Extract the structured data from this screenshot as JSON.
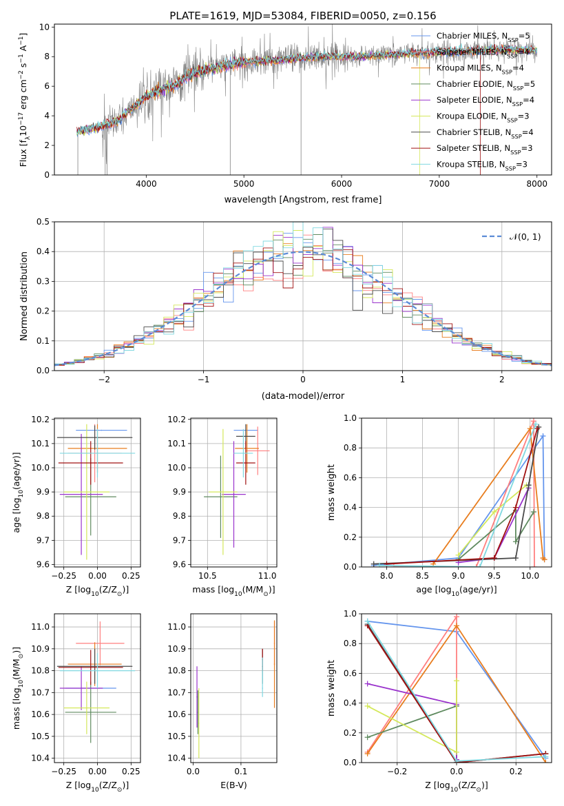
{
  "figure": {
    "title": "PLATE=1619, MJD=53084, FIBERID=0050, z=0.156"
  },
  "colors": {
    "Chabrier MILES": "#6495ed",
    "Salpeter MILES": "#ff7f7f",
    "Kroupa MILES": "#e87d1e",
    "Chabrier ELODIE": "#5f8a5f",
    "Salpeter ELODIE": "#9932cc",
    "Kroupa ELODIE": "#d4e85a",
    "Chabrier STELIB": "#4a4a4a",
    "Salpeter STELIB": "#a01010",
    "Kroupa STELIB": "#7fd8e0",
    "data": "#808080",
    "normal": "#5b8bd6"
  },
  "chart_data": [
    {
      "type": "line",
      "panel": "spectrum",
      "xlabel": "wavelength [Angstrom, rest frame]",
      "ylabel_main": "Flux [f",
      "ylabel_sub": "λ",
      "ylabel_rest": "10",
      "ylabel_sup1": "−17",
      "ylabel_mid": " erg cm",
      "ylabel_sup2": "−2",
      "ylabel_mid2": " s",
      "ylabel_sup3": "−1",
      "ylabel_mid3": " A",
      "ylabel_sup4": "−1",
      "ylabel_end": "]",
      "xlim": [
        3060,
        8150
      ],
      "ylim": [
        0,
        10.2
      ],
      "xticks": [
        "4000",
        "5000",
        "6000",
        "7000",
        "8000"
      ],
      "yticks": [
        "0",
        "2",
        "4",
        "6",
        "8",
        "10"
      ],
      "continuum_x": [
        3290,
        3400,
        3500,
        3600,
        3700,
        3800,
        3900,
        4000,
        4100,
        4200,
        4300,
        4400,
        4500,
        4600,
        4800,
        5000,
        5200,
        5400,
        5600,
        5800,
        6000,
        6200,
        6400,
        6600,
        6800,
        7000,
        7200,
        7400,
        7600,
        7800,
        8000
      ],
      "continuum_y": [
        2.9,
        3.1,
        3.2,
        3.4,
        3.6,
        4.2,
        4.7,
        5.3,
        5.6,
        5.9,
        6.1,
        6.6,
        6.9,
        7.1,
        7.4,
        7.6,
        7.7,
        7.8,
        7.9,
        8.0,
        8.0,
        8.0,
        8.1,
        8.15,
        8.25,
        8.3,
        8.35,
        8.4,
        8.45,
        8.45,
        8.4
      ],
      "legend": [
        {
          "main": "Chabrier MILES, N",
          "sub": "SSP",
          "rest": "=5"
        },
        {
          "main": "Salpeter MILES, N",
          "sub": "SSP",
          "rest": "=4"
        },
        {
          "main": "Kroupa MILES, N",
          "sub": "SSP",
          "rest": "=4"
        },
        {
          "main": "Chabrier ELODIE, N",
          "sub": "SSP",
          "rest": "=5"
        },
        {
          "main": "Salpeter ELODIE, N",
          "sub": "SSP",
          "rest": "=4"
        },
        {
          "main": "Kroupa ELODIE, N",
          "sub": "SSP",
          "rest": "=3"
        },
        {
          "main": "Chabrier STELIB, N",
          "sub": "SSP",
          "rest": "=4"
        },
        {
          "main": "Salpeter STELIB, N",
          "sub": "SSP",
          "rest": "=3"
        },
        {
          "main": "Kroupa STELIB, N",
          "sub": "SSP",
          "rest": "=3"
        }
      ]
    },
    {
      "type": "bar",
      "panel": "residuals",
      "xlabel": "(data-model)/error",
      "ylabel": "Normed distribution",
      "xlim": [
        -2.5,
        2.5
      ],
      "ylim": [
        0,
        0.5
      ],
      "xticks": [
        "−2",
        "−1",
        "0",
        "1",
        "2"
      ],
      "yticks": [
        "0.0",
        "0.1",
        "0.2",
        "0.3",
        "0.4",
        "0.5"
      ],
      "legend": "𝒩(0, 1)",
      "bin_width": 0.1,
      "bin_start": -2.5
    },
    {
      "type": "scatter",
      "panel": "age-vs-Z",
      "xlabel": "Z [log",
      "xlabel_sub": "10",
      "xlabel_rest": "(Z/Z",
      "xlabel_sun": "⊙",
      "xlabel_end": ")]",
      "ylabel": "age  [log",
      "ylabel_sub": "10",
      "ylabel_rest": "(age/yr)]",
      "xlim": [
        -0.32,
        0.32
      ],
      "ylim": [
        9.59,
        10.205
      ],
      "xticks": [
        "−0.25",
        "0.00",
        "0.25"
      ],
      "yticks": [
        "9.6",
        "9.7",
        "9.8",
        "9.9",
        "10.0",
        "10.1",
        "10.2"
      ],
      "points": [
        {
          "model": "Chabrier MILES",
          "x": 0.03,
          "y": 10.155,
          "xerr": 0.19,
          "yerr": 0.0
        },
        {
          "model": "Salpeter MILES",
          "x": -0.02,
          "y": 10.06,
          "xerr": 0.2,
          "yerr": 0.12
        },
        {
          "model": "Kroupa MILES",
          "x": 0.0,
          "y": 10.08,
          "xerr": 0.22,
          "yerr": 0.1
        },
        {
          "model": "Chabrier ELODIE",
          "x": -0.05,
          "y": 9.88,
          "xerr": 0.19,
          "yerr": 0.16
        },
        {
          "model": "Salpeter ELODIE",
          "x": -0.12,
          "y": 9.89,
          "xerr": 0.16,
          "yerr": 0.25
        },
        {
          "model": "Kroupa ELODIE",
          "x": -0.08,
          "y": 9.9,
          "xerr": 0.17,
          "yerr": 0.28
        },
        {
          "model": "Chabrier STELIB",
          "x": -0.02,
          "y": 10.125,
          "xerr": 0.28,
          "yerr": 0.05
        },
        {
          "model": "Salpeter STELIB",
          "x": -0.05,
          "y": 10.02,
          "xerr": 0.24,
          "yerr": 0.09
        },
        {
          "model": "Kroupa STELIB",
          "x": 0.0,
          "y": 10.06,
          "xerr": 0.28,
          "yerr": 0.1
        }
      ]
    },
    {
      "type": "scatter",
      "panel": "age-vs-mass",
      "xlabel": "mass [log",
      "xlabel_sub": "10",
      "xlabel_rest": "(M/M",
      "xlabel_sun": "⊙",
      "xlabel_end": ")]",
      "xlim": [
        10.36,
        11.08
      ],
      "ylim": [
        9.59,
        10.205
      ],
      "xticks": [
        "10.5",
        "11.0"
      ],
      "yticks": [
        "9.6",
        "9.7",
        "9.8",
        "9.9",
        "10.0",
        "10.1",
        "10.2"
      ],
      "points": [
        {
          "model": "Chabrier MILES",
          "x": 10.82,
          "y": 10.155,
          "xerr": 0.1,
          "yerr": 0.0
        },
        {
          "model": "Salpeter MILES",
          "x": 10.92,
          "y": 10.07,
          "xerr": 0.1,
          "yerr": 0.1
        },
        {
          "model": "Kroupa MILES",
          "x": 10.83,
          "y": 10.08,
          "xerr": 0.1,
          "yerr": 0.1
        },
        {
          "model": "Chabrier ELODIE",
          "x": 10.61,
          "y": 9.88,
          "xerr": 0.14,
          "yerr": 0.17
        },
        {
          "model": "Salpeter ELODIE",
          "x": 10.72,
          "y": 9.89,
          "xerr": 0.1,
          "yerr": 0.22
        },
        {
          "model": "Kroupa ELODIE",
          "x": 10.63,
          "y": 9.9,
          "xerr": 0.12,
          "yerr": 0.26
        },
        {
          "model": "Chabrier STELIB",
          "x": 10.82,
          "y": 10.13,
          "xerr": 0.08,
          "yerr": 0.05
        },
        {
          "model": "Salpeter STELIB",
          "x": 10.82,
          "y": 10.02,
          "xerr": 0.08,
          "yerr": 0.09
        },
        {
          "model": "Kroupa STELIB",
          "x": 10.8,
          "y": 10.06,
          "xerr": 0.08,
          "yerr": 0.1
        }
      ]
    },
    {
      "type": "line",
      "panel": "weight-vs-age",
      "xlabel": "age  [log",
      "xlabel_sub": "10",
      "xlabel_rest": "(age/yr)]",
      "ylabel": "mass weight",
      "xlim": [
        7.65,
        10.3
      ],
      "ylim": [
        0,
        1.0
      ],
      "xticks": [
        "8.0",
        "8.5",
        "9.0",
        "9.5",
        "10.0"
      ],
      "yticks": [
        "0.0",
        "0.2",
        "0.4",
        "0.6",
        "0.8",
        "1.0"
      ],
      "series": [
        {
          "model": "Chabrier MILES",
          "x": [
            7.82,
            9.0,
            10.18,
            10.2
          ],
          "y": [
            0.01,
            0.06,
            0.88,
            0.05
          ]
        },
        {
          "model": "Salpeter MILES",
          "x": [
            8.1,
            9.25,
            10.05,
            10.06
          ],
          "y": [
            0.0,
            0.0,
            0.98,
            0.0
          ]
        },
        {
          "model": "Kroupa MILES",
          "x": [
            8.65,
            10.0,
            10.18,
            10.2
          ],
          "y": [
            0.02,
            0.93,
            0.06,
            0.05
          ]
        },
        {
          "model": "Chabrier ELODIE",
          "x": [
            9.0,
            9.8,
            9.8,
            10.05
          ],
          "y": [
            0.05,
            0.38,
            0.17,
            0.37
          ]
        },
        {
          "model": "Salpeter ELODIE",
          "x": [
            9.0,
            9.5,
            9.98
          ],
          "y": [
            0.03,
            0.06,
            0.53
          ]
        },
        {
          "model": "Kroupa ELODIE",
          "x": [
            9.0,
            9.5,
            9.95
          ],
          "y": [
            0.08,
            0.37,
            0.55
          ]
        },
        {
          "model": "Chabrier STELIB",
          "x": [
            7.82,
            9.8,
            9.98,
            10.12
          ],
          "y": [
            0.02,
            0.06,
            0.55,
            0.94
          ]
        },
        {
          "model": "Salpeter STELIB",
          "x": [
            8.0,
            9.5,
            9.8,
            10.1
          ],
          "y": [
            0.02,
            0.06,
            0.4,
            0.93
          ]
        },
        {
          "model": "Kroupa STELIB",
          "x": [
            7.9,
            9.3,
            10.08
          ],
          "y": [
            0.01,
            0.0,
            0.96
          ]
        }
      ]
    },
    {
      "type": "scatter",
      "panel": "mass-vs-Z",
      "xlabel": "Z [log",
      "xlabel_sub": "10",
      "xlabel_rest": "(Z/Z",
      "xlabel_sun": "⊙",
      "xlabel_end": ")]",
      "ylabel": "mass [log",
      "ylabel_sub": "10",
      "ylabel_rest": "(M/M",
      "ylabel_sun": "⊙",
      "ylabel_end": ")]",
      "xlim": [
        -0.32,
        0.32
      ],
      "ylim": [
        10.38,
        11.06
      ],
      "xticks": [
        "−0.25",
        "0.00",
        "0.25"
      ],
      "yticks": [
        "10.4",
        "10.5",
        "10.6",
        "10.7",
        "10.8",
        "10.9",
        "11.0"
      ],
      "points": [
        {
          "model": "Chabrier MILES",
          "x": -0.05,
          "y": 10.72,
          "xerr": 0.19,
          "yerr": 0.0
        },
        {
          "model": "Salpeter MILES",
          "x": 0.02,
          "y": 10.925,
          "xerr": 0.18,
          "yerr": 0.1
        },
        {
          "model": "Kroupa MILES",
          "x": -0.02,
          "y": 10.83,
          "xerr": 0.2,
          "yerr": 0.1
        },
        {
          "model": "Chabrier ELODIE",
          "x": -0.05,
          "y": 10.61,
          "xerr": 0.19,
          "yerr": 0.14
        },
        {
          "model": "Salpeter ELODIE",
          "x": -0.12,
          "y": 10.72,
          "xerr": 0.16,
          "yerr": 0.1
        },
        {
          "model": "Kroupa ELODIE",
          "x": -0.08,
          "y": 10.63,
          "xerr": 0.17,
          "yerr": 0.12
        },
        {
          "model": "Chabrier STELIB",
          "x": -0.02,
          "y": 10.82,
          "xerr": 0.28,
          "yerr": 0.08
        },
        {
          "model": "Salpeter STELIB",
          "x": -0.05,
          "y": 10.815,
          "xerr": 0.24,
          "yerr": 0.08
        },
        {
          "model": "Kroupa STELIB",
          "x": 0.0,
          "y": 10.8,
          "xerr": 0.28,
          "yerr": 0.08
        }
      ]
    },
    {
      "type": "scatter",
      "panel": "mass-vs-EBV",
      "xlabel": "E(B-V)",
      "xlim": [
        -0.005,
        0.175
      ],
      "ylim": [
        10.38,
        11.06
      ],
      "xticks": [
        "0.0",
        "0.1"
      ],
      "yticks": [
        "10.4",
        "10.5",
        "10.6",
        "10.7",
        "10.8",
        "10.9",
        "11.0"
      ],
      "points": [
        {
          "model": "Chabrier MILES",
          "x": 0.145,
          "y": 10.72,
          "xerr": 0.0,
          "yerr": 0.0
        },
        {
          "model": "Salpeter MILES",
          "x": 0.17,
          "y": 10.925,
          "xerr": 0.0,
          "yerr": 0.1
        },
        {
          "model": "Kroupa MILES",
          "x": 0.17,
          "y": 10.83,
          "xerr": 0.0,
          "yerr": 0.2
        },
        {
          "model": "Chabrier ELODIE",
          "x": 0.01,
          "y": 10.61,
          "xerr": 0.0,
          "yerr": 0.1
        },
        {
          "model": "Salpeter ELODIE",
          "x": 0.008,
          "y": 10.68,
          "xerr": 0.0,
          "yerr": 0.14
        },
        {
          "model": "Kroupa ELODIE",
          "x": 0.012,
          "y": 10.56,
          "xerr": 0.0,
          "yerr": 0.16
        },
        {
          "model": "Chabrier STELIB",
          "x": 0.145,
          "y": 10.82,
          "xerr": 0.0,
          "yerr": 0.08
        },
        {
          "model": "Salpeter STELIB",
          "x": 0.145,
          "y": 10.85,
          "xerr": 0.0,
          "yerr": 0.05
        },
        {
          "model": "Kroupa STELIB",
          "x": 0.145,
          "y": 10.77,
          "xerr": 0.0,
          "yerr": 0.09
        }
      ]
    },
    {
      "type": "line",
      "panel": "weight-vs-Z",
      "xlabel": "Z [log",
      "xlabel_sub": "10",
      "xlabel_rest": "(Z/Z",
      "xlabel_sun": "⊙",
      "xlabel_end": ")]",
      "ylabel": "mass weight",
      "xlim": [
        -0.32,
        0.32
      ],
      "ylim": [
        0,
        1.0
      ],
      "xticks": [
        "−0.2",
        "0.0",
        "0.2"
      ],
      "yticks": [
        "0.0",
        "0.2",
        "0.4",
        "0.6",
        "0.8",
        "1.0"
      ],
      "series": [
        {
          "model": "Chabrier MILES",
          "x": [
            -0.3,
            0.0,
            0.3
          ],
          "y": [
            0.95,
            0.88,
            0.03
          ]
        },
        {
          "model": "Salpeter MILES",
          "x": [
            -0.3,
            0.0,
            0.0
          ],
          "y": [
            0.07,
            0.98,
            0.0
          ]
        },
        {
          "model": "Kroupa MILES",
          "x": [
            -0.3,
            0.0,
            0.3
          ],
          "y": [
            0.06,
            0.92,
            0.0
          ]
        },
        {
          "model": "Chabrier ELODIE",
          "x": [
            -0.3,
            0.0,
            0.0
          ],
          "y": [
            0.17,
            0.38,
            0.0
          ]
        },
        {
          "model": "Salpeter ELODIE",
          "x": [
            -0.3,
            0.0,
            0.0
          ],
          "y": [
            0.53,
            0.39,
            0.02
          ]
        },
        {
          "model": "Kroupa ELODIE",
          "x": [
            -0.3,
            0.0,
            0.0
          ],
          "y": [
            0.38,
            0.07,
            0.55
          ]
        },
        {
          "model": "Chabrier STELIB",
          "x": [
            -0.3,
            0.0,
            0.3
          ],
          "y": [
            0.93,
            0.0,
            0.06
          ]
        },
        {
          "model": "Salpeter STELIB",
          "x": [
            -0.3,
            0.0,
            0.3
          ],
          "y": [
            0.92,
            0.0,
            0.06
          ]
        },
        {
          "model": "Kroupa STELIB",
          "x": [
            -0.3,
            0.0,
            0.3
          ],
          "y": [
            0.95,
            0.01,
            0.04
          ]
        }
      ]
    }
  ]
}
